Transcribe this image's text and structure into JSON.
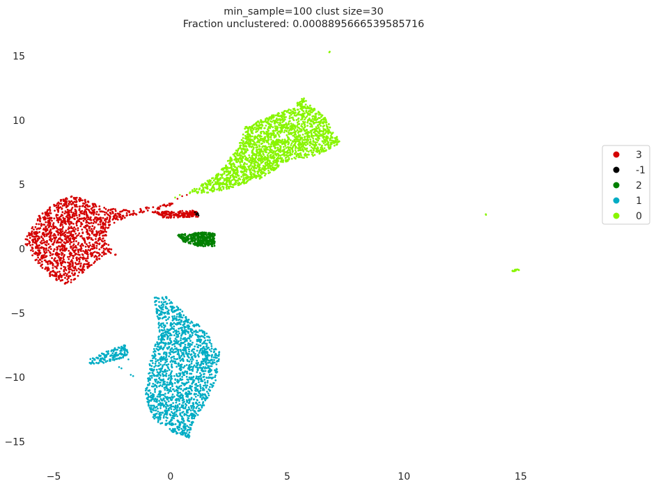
{
  "chart_data": {
    "type": "scatter",
    "title": "min_sample=100 clust size=30",
    "subtitle": "Fraction unclustered: 0.0008895666539585716",
    "xlabel": "",
    "ylabel": "",
    "xlim": [
      -7.3,
      19.0
    ],
    "ylim": [
      -16.5,
      16.5
    ],
    "x_ticks": [
      -5,
      0,
      5,
      10,
      15
    ],
    "y_ticks": [
      -15,
      -10,
      -5,
      0,
      5,
      10,
      15
    ],
    "x_tick_labels": [
      "−5",
      "0",
      "5",
      "10",
      "15"
    ],
    "y_tick_labels": [
      "−15",
      "−10",
      "−5",
      "0",
      "5",
      "10",
      "15"
    ],
    "grid": false,
    "legend_placement": "center-right",
    "series": [
      {
        "name": "3",
        "color": "#d40000",
        "regions": [
          {
            "poly": [
              [
                -6.2,
                0.8
              ],
              [
                -5.6,
                2.7
              ],
              [
                -4.8,
                3.7
              ],
              [
                -4.3,
                4.2
              ],
              [
                -3.6,
                3.8
              ],
              [
                -2.8,
                3.2
              ],
              [
                -1.8,
                3.0
              ],
              [
                -0.8,
                3.3
              ],
              [
                0.3,
                3.7
              ],
              [
                0.6,
                4.0
              ],
              [
                -0.2,
                3.2
              ],
              [
                -1.0,
                2.9
              ],
              [
                -2.0,
                2.4
              ],
              [
                -2.6,
                1.8
              ],
              [
                -2.8,
                0.8
              ],
              [
                -2.3,
                -0.5
              ],
              [
                -2.7,
                -0.3
              ],
              [
                -3.4,
                -1.3
              ],
              [
                -4.1,
                -2.4
              ],
              [
                -4.4,
                -2.8
              ],
              [
                -5.1,
                -2.3
              ],
              [
                -5.7,
                -1.1
              ],
              [
                -6.2,
                0.2
              ]
            ],
            "n": 1400
          },
          {
            "poly": [
              [
                -0.8,
                2.9
              ],
              [
                1.1,
                3.0
              ],
              [
                1.2,
                2.5
              ],
              [
                -0.3,
                2.4
              ]
            ],
            "n": 160
          }
        ],
        "points": [
          [
            0.5,
            4.1
          ],
          [
            0.3,
            3.9
          ],
          [
            0.7,
            4.2
          ]
        ]
      },
      {
        "name": "-1",
        "color": "#000000",
        "regions": [],
        "points": [
          [
            1.1,
            2.7
          ],
          [
            1.15,
            2.8
          ],
          [
            1.2,
            2.6
          ],
          [
            1.05,
            2.85
          ],
          [
            1.18,
            2.72
          ],
          [
            1.12,
            2.65
          ]
        ]
      },
      {
        "name": "2",
        "color": "#008000",
        "regions": [
          {
            "poly": [
              [
                0.3,
                1.1
              ],
              [
                1.4,
                1.3
              ],
              [
                1.9,
                1.2
              ],
              [
                1.9,
                0.2
              ],
              [
                1.2,
                0.2
              ],
              [
                0.5,
                0.6
              ]
            ],
            "n": 380
          }
        ],
        "points": []
      },
      {
        "name": "1",
        "color": "#00acc4",
        "regions": [
          {
            "poly": [
              [
                -0.7,
                -3.8
              ],
              [
                -0.2,
                -3.7
              ],
              [
                0.6,
                -5.0
              ],
              [
                1.4,
                -6.2
              ],
              [
                2.1,
                -8.0
              ],
              [
                2.0,
                -10.0
              ],
              [
                1.5,
                -12.0
              ],
              [
                1.0,
                -13.5
              ],
              [
                0.8,
                -14.7
              ],
              [
                0.1,
                -14.3
              ],
              [
                -0.7,
                -13.3
              ],
              [
                -1.1,
                -11.5
              ],
              [
                -0.9,
                -9.0
              ],
              [
                -0.5,
                -6.5
              ]
            ],
            "n": 1700
          },
          {
            "poly": [
              [
                -3.6,
                -8.7
              ],
              [
                -2.8,
                -8.0
              ],
              [
                -1.9,
                -7.4
              ],
              [
                -1.8,
                -8.3
              ],
              [
                -2.5,
                -8.8
              ],
              [
                -3.5,
                -9.0
              ]
            ],
            "n": 140
          }
        ],
        "points": [
          [
            -2.2,
            -9.2
          ],
          [
            -2.1,
            -9.3
          ],
          [
            -1.7,
            -9.8
          ],
          [
            -1.6,
            -9.9
          ],
          [
            -1.8,
            -8.6
          ]
        ]
      },
      {
        "name": "0",
        "color": "#88f500",
        "regions": [
          {
            "poly": [
              [
                0.7,
                4.3
              ],
              [
                2.0,
                5.8
              ],
              [
                2.9,
                7.9
              ],
              [
                3.2,
                9.5
              ],
              [
                4.2,
                10.3
              ],
              [
                5.2,
                11.0
              ],
              [
                5.7,
                11.8
              ],
              [
                5.9,
                11.3
              ],
              [
                6.6,
                10.3
              ],
              [
                7.3,
                8.3
              ],
              [
                6.4,
                7.3
              ],
              [
                5.1,
                6.9
              ],
              [
                3.9,
                5.5
              ],
              [
                3.5,
                5.3
              ],
              [
                2.4,
                4.6
              ],
              [
                1.3,
                4.3
              ]
            ],
            "n": 2000
          },
          {
            "poly": [
              [
                14.6,
                -1.7
              ],
              [
                14.9,
                -1.5
              ],
              [
                15.0,
                -1.6
              ],
              [
                14.7,
                -1.8
              ]
            ],
            "n": 14
          }
        ],
        "points": [
          [
            6.8,
            15.3
          ],
          [
            6.82,
            15.35
          ],
          [
            13.5,
            2.7
          ],
          [
            13.51,
            2.65
          ],
          [
            0.4,
            4.2
          ],
          [
            0.2,
            4.0
          ]
        ]
      }
    ],
    "legend_order": [
      "3",
      "-1",
      "2",
      "1",
      "0"
    ]
  }
}
